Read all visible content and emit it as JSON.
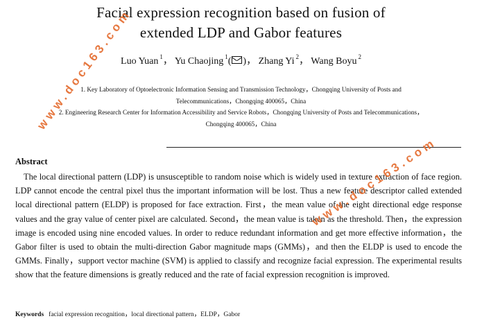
{
  "paper": {
    "title_line1": "Facial expression recognition based on fusion of",
    "title_line2": "extended LDP and Gabor features",
    "authors": [
      {
        "name": "Luo Yuan",
        "sup": "1"
      },
      {
        "name": "Yu Chaojing",
        "sup": "1"
      },
      {
        "name": "Zhang Yi",
        "sup": "2"
      },
      {
        "name": "Wang Boyu",
        "sup": "2"
      }
    ],
    "separator": "，",
    "corresponding_mark_icon": "envelope-icon",
    "affiliations": [
      {
        "line1": "1. Key Laboratory of Optoelectronic Information Sensing and Transmission Technology，Chongqing University of Posts and",
        "line2": "Telecommunications，Chongqing 400065，China"
      },
      {
        "line1": "2. Engineering Research Center for Information Accessibility and Service Robots，Chongqing University of Posts and Telecommunications，",
        "line2": "Chongqing 400065，China"
      }
    ],
    "abstract_heading": "Abstract",
    "abstract_text": "The local directional pattern (LDP) is unsusceptible to random noise which is widely used in texture extraction of face region. LDP cannot encode the central pixel thus the important information will be lost. Thus a new feature descriptor called extended local directional pattern (ELDP) is proposed for face extraction. First，the mean value of the eight directional edge response values and the gray value of center pixel are calculated. Second，the mean value is taken as the threshold. Then，the expression image is encoded using nine encoded values. In order to reduce redundant information and get more effective information，the Gabor filter is used to obtain the multi-direction Gabor magnitude maps (GMMs)，and then the ELDP is used to encode the GMMs. Finally，support vector machine (SVM) is applied to classify and recognize facial expression. The experimental results show that the feature dimensions is greatly reduced and the rate of facial expression recognition is improved.",
    "keywords_label": "Keywords",
    "keywords_text": "facial expression recognition，local directional pattern，ELDP，Gabor"
  },
  "watermarks": [
    "www.doc163.com",
    "www.doc163.com"
  ],
  "colors": {
    "watermark": "#e46a2c",
    "text": "#111111"
  }
}
